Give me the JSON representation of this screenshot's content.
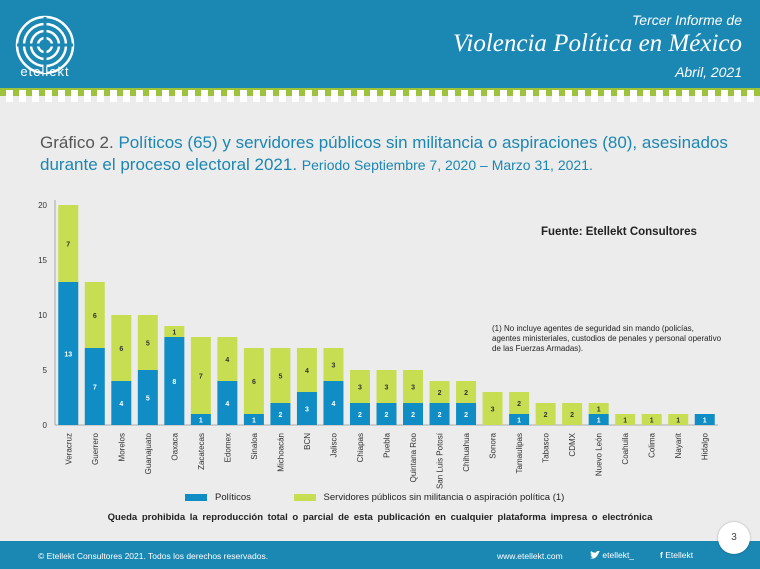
{
  "header": {
    "logo_text": "etellekt",
    "report_top": "Tercer Informe de",
    "report_title": "Violencia Política en México",
    "report_date": "Abril, 2021"
  },
  "title": {
    "lead": "Gráfico 2.",
    "main": "Políticos (65) y servidores públicos sin militancia o aspiraciones (80), asesinados durante el proceso electoral 2021.",
    "period": "Periodo Septiembre 7, 2020 – Marzo 31, 2021."
  },
  "source": "Fuente: Etellekt Consultores",
  "note": "(1) No incluye agentes de seguridad sin mando (policías, agentes ministeriales, custodios de penales y personal operativo de las Fuerzas Armadas).",
  "disclaimer": "Queda prohibida la reproducción total o parcial de esta publicación en cualquier plataforma impresa o electrónica",
  "footer": {
    "copyright": "© Etellekt Consultores 2021. Todos los derechos reservados.",
    "website": "www.etellekt.com",
    "twitter": "etellekt_",
    "facebook": "Etellekt",
    "page": "3"
  },
  "colors": {
    "header": "#1b87b3",
    "politicos": "#0f8dc4",
    "servidores": "#c7de53",
    "stripe": "#9dc23b"
  },
  "chart_data": {
    "type": "bar",
    "stacked": true,
    "ylim": [
      0,
      20
    ],
    "yticks": [
      0,
      5,
      10,
      15,
      20
    ],
    "categories": [
      "Veracruz",
      "Guerrero",
      "Morelos",
      "Guanajuato",
      "Oaxaca",
      "Zacatecas",
      "Edomex",
      "Sinaloa",
      "Michoacán",
      "BCN",
      "Jalisco",
      "Chiapas",
      "Puebla",
      "Quintana Roo",
      "San Luis Potosí",
      "Chihuahua",
      "Sonora",
      "Tamaulipas",
      "Tabasco",
      "CDMX",
      "Nuevo León",
      "Coahuila",
      "Colima",
      "Nayarit",
      "Hidalgo"
    ],
    "series": [
      {
        "name": "Políticos",
        "color": "#0f8dc4",
        "values": [
          13,
          7,
          4,
          5,
          8,
          1,
          4,
          1,
          2,
          3,
          4,
          2,
          2,
          2,
          2,
          2,
          0,
          1,
          0,
          0,
          1,
          0,
          0,
          0,
          1
        ]
      },
      {
        "name": "Servidores públicos sin militancia o aspiración política (1)",
        "color": "#c7de53",
        "values": [
          7,
          6,
          6,
          5,
          1,
          7,
          4,
          6,
          5,
          4,
          3,
          3,
          3,
          3,
          2,
          2,
          3,
          2,
          2,
          2,
          1,
          1,
          1,
          1,
          0
        ]
      }
    ]
  }
}
